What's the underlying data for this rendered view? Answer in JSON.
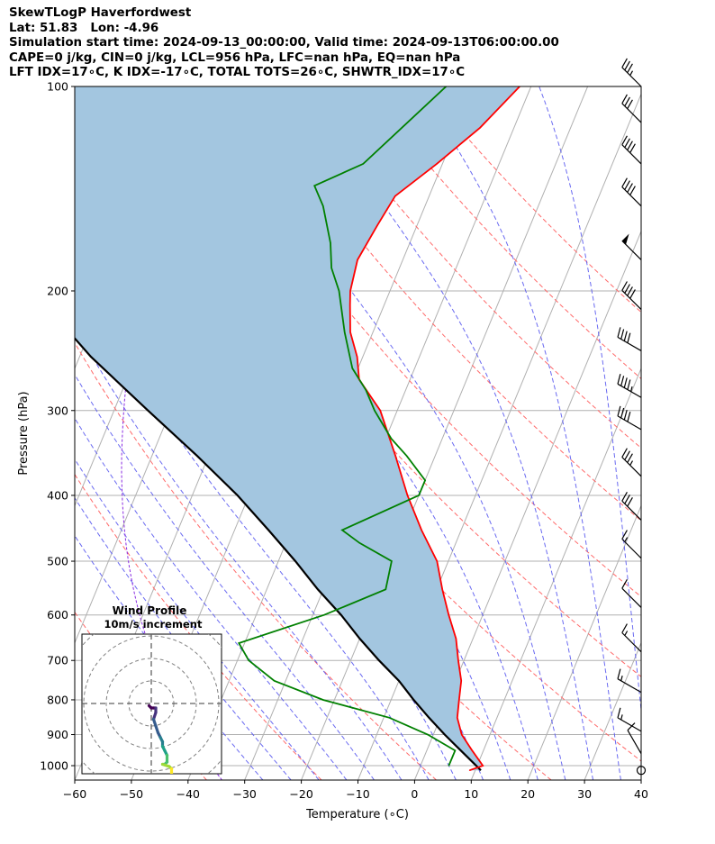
{
  "header": {
    "lines": [
      "SkewTLogP Haverfordwest",
      "Lat: 51.83   Lon: -4.96",
      "Simulation start time: 2024-09-13_00:00:00, Valid time: 2024-09-13T06:00:00.00",
      "CAPE=0 j/kg, CIN=0 j/kg, LCL=956 hPa, LFC=nan hPa, EQ=nan hPa",
      "LFT IDX=17∘C, K IDX=-17∘C, TOTAL TOTS=26∘C, SHWTR_IDX=17∘C"
    ]
  },
  "chart_data": {
    "type": "line",
    "subtype": "skew-t log-p",
    "title": "SkewTLogP Haverfordwest",
    "xlabel": "Temperature (∘C)",
    "ylabel": "Pressure (hPa)",
    "xlim": [
      -60,
      40
    ],
    "ylim": [
      1050,
      100
    ],
    "y_scale": "log",
    "grid": true,
    "x_ticks": [
      -60,
      -50,
      -40,
      -30,
      -20,
      -10,
      0,
      10,
      20,
      30,
      40
    ],
    "y_ticks": [
      100,
      200,
      300,
      400,
      500,
      600,
      700,
      800,
      900,
      1000
    ],
    "series": [
      {
        "role": "temperature",
        "color": "#ff0000",
        "points": [
          [
            9,
            1016
          ],
          [
            11,
            1000
          ],
          [
            8,
            950
          ],
          [
            5,
            900
          ],
          [
            3,
            850
          ],
          [
            2,
            800
          ],
          [
            1,
            750
          ],
          [
            -1,
            700
          ],
          [
            -3,
            650
          ],
          [
            -6,
            600
          ],
          [
            -9,
            550
          ],
          [
            -12,
            500
          ],
          [
            -17,
            450
          ],
          [
            -22,
            400
          ],
          [
            -27,
            350
          ],
          [
            -33,
            300
          ],
          [
            -39,
            270
          ],
          [
            -41,
            250
          ],
          [
            -44,
            230
          ],
          [
            -46,
            210
          ],
          [
            -47,
            200
          ],
          [
            -48,
            180
          ],
          [
            -47,
            160
          ],
          [
            -46,
            145
          ],
          [
            -41,
            130
          ],
          [
            -36,
            115
          ],
          [
            -32,
            100
          ]
        ]
      },
      {
        "role": "dewpoint",
        "color": "#008000",
        "points": [
          [
            5,
            1000
          ],
          [
            5,
            950
          ],
          [
            -1,
            900
          ],
          [
            -9,
            850
          ],
          [
            -22,
            800
          ],
          [
            -32,
            750
          ],
          [
            -38,
            700
          ],
          [
            -41,
            660
          ],
          [
            -28,
            600
          ],
          [
            -19,
            550
          ],
          [
            -20,
            500
          ],
          [
            -27,
            470
          ],
          [
            -31,
            450
          ],
          [
            -20,
            400
          ],
          [
            -20,
            380
          ],
          [
            -25,
            350
          ],
          [
            -29,
            330
          ],
          [
            -34,
            300
          ],
          [
            -37,
            280
          ],
          [
            -41,
            260
          ],
          [
            -45,
            230
          ],
          [
            -49,
            200
          ],
          [
            -52,
            185
          ],
          [
            -54,
            170
          ],
          [
            -58,
            150
          ],
          [
            -61,
            140
          ],
          [
            -54,
            130
          ],
          [
            -45,
            100
          ]
        ]
      },
      {
        "role": "parcel",
        "color": "#000000",
        "points": [
          [
            11,
            1016
          ],
          [
            6,
            950
          ],
          [
            2,
            900
          ],
          [
            -2,
            850
          ],
          [
            -6,
            800
          ],
          [
            -10,
            750
          ],
          [
            -15,
            700
          ],
          [
            -20,
            650
          ],
          [
            -25,
            600
          ],
          [
            -31,
            550
          ],
          [
            -37,
            500
          ],
          [
            -44,
            450
          ],
          [
            -52,
            400
          ],
          [
            -62,
            350
          ],
          [
            -74,
            300
          ],
          [
            -88,
            250
          ],
          [
            -103,
            200
          ],
          [
            -119,
            150
          ],
          [
            -133,
            120
          ],
          [
            -143,
            100
          ]
        ]
      }
    ],
    "wind_barbs": [
      {
        "p": 100,
        "speed_kt": 35,
        "dir_deg": 315
      },
      {
        "p": 113,
        "speed_kt": 30,
        "dir_deg": 315
      },
      {
        "p": 130,
        "speed_kt": 40,
        "dir_deg": 315
      },
      {
        "p": 150,
        "speed_kt": 40,
        "dir_deg": 315
      },
      {
        "p": 180,
        "speed_kt": 50,
        "dir_deg": 315
      },
      {
        "p": 213,
        "speed_kt": 40,
        "dir_deg": 315
      },
      {
        "p": 245,
        "speed_kt": 40,
        "dir_deg": 300
      },
      {
        "p": 287,
        "speed_kt": 45,
        "dir_deg": 300
      },
      {
        "p": 320,
        "speed_kt": 40,
        "dir_deg": 300
      },
      {
        "p": 375,
        "speed_kt": 35,
        "dir_deg": 315
      },
      {
        "p": 435,
        "speed_kt": 30,
        "dir_deg": 315
      },
      {
        "p": 495,
        "speed_kt": 15,
        "dir_deg": 315
      },
      {
        "p": 585,
        "speed_kt": 10,
        "dir_deg": 315
      },
      {
        "p": 680,
        "speed_kt": 15,
        "dir_deg": 315
      },
      {
        "p": 780,
        "speed_kt": 15,
        "dir_deg": 300
      },
      {
        "p": 890,
        "speed_kt": 15,
        "dir_deg": 300
      },
      {
        "p": 960,
        "speed_kt": 10,
        "dir_deg": 330
      },
      {
        "p": 1016,
        "speed_kt": 0,
        "dir_deg": 0
      }
    ],
    "hodograph": {
      "title": "Wind Profile",
      "subtitle": "10m/s increment",
      "rings_ms": [
        10,
        20,
        30,
        40
      ],
      "trace": [
        [
          -1,
          -1
        ],
        [
          0,
          -2
        ],
        [
          1,
          -2
        ],
        [
          2,
          -2
        ],
        [
          2,
          -4
        ],
        [
          1,
          -7
        ],
        [
          2,
          -10
        ],
        [
          3,
          -13
        ],
        [
          4,
          -15
        ],
        [
          5,
          -17
        ],
        [
          5,
          -19
        ],
        [
          6,
          -21
        ],
        [
          7,
          -23
        ],
        [
          7,
          -26
        ],
        [
          6,
          -27
        ],
        [
          5,
          -27
        ],
        [
          8,
          -28
        ],
        [
          9,
          -29
        ],
        [
          9,
          -32
        ],
        [
          10,
          -34
        ]
      ]
    }
  }
}
